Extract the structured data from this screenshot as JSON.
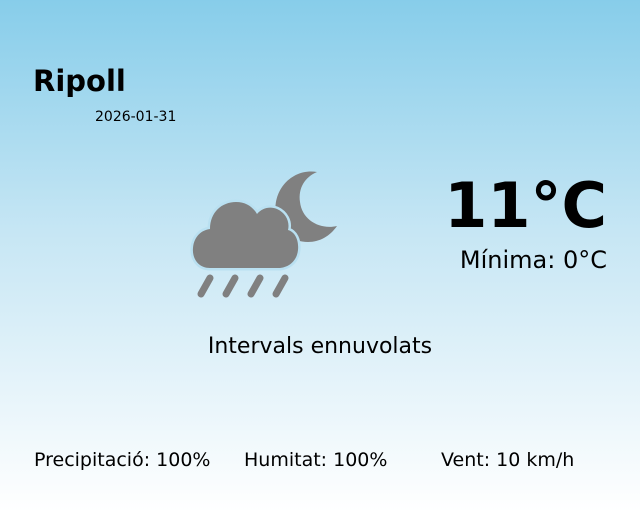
{
  "location": {
    "city": "Ripoll",
    "date": "2026-01-31"
  },
  "weather": {
    "temperature": "11°C",
    "minimum": "Mínima: 0°C",
    "description": "Intervals ennuvolats",
    "icon": "night-cloud-rain-icon",
    "icon_color": "#808080"
  },
  "stats": {
    "precipitation": "Precipitació: 100%",
    "humidity": "Humitat: 100%",
    "wind": "Vent: 10 km/h"
  }
}
